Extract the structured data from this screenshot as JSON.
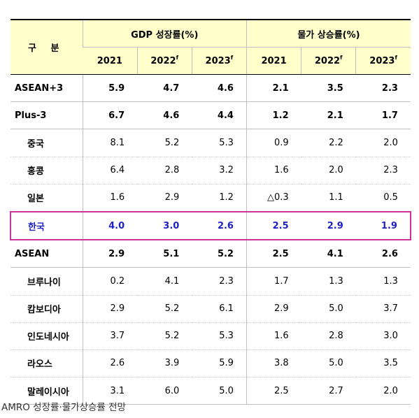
{
  "header": {
    "corner": "구 분",
    "gdp": "GDP 성장률(%)",
    "cpi": "물가 상승률(%)",
    "years": [
      {
        "year": "2021",
        "sup": ""
      },
      {
        "year": "2022",
        "sup": "f"
      },
      {
        "year": "2023",
        "sup": "f"
      },
      {
        "year": "2021",
        "sup": ""
      },
      {
        "year": "2022",
        "sup": "f"
      },
      {
        "year": "2023",
        "sup": "f"
      }
    ]
  },
  "rows": [
    {
      "name": "ASEAN+3",
      "values": [
        "5.9",
        "4.7",
        "4.6",
        "2.1",
        "3.5",
        "2.3"
      ]
    },
    {
      "name": "Plus-3",
      "values": [
        "6.7",
        "4.6",
        "4.4",
        "1.2",
        "2.1",
        "1.7"
      ]
    },
    {
      "name": "중국",
      "values": [
        "8.1",
        "5.2",
        "5.3",
        "0.9",
        "2.2",
        "2.0"
      ]
    },
    {
      "name": "홍콩",
      "values": [
        "6.4",
        "2.8",
        "3.2",
        "1.6",
        "2.0",
        "2.3"
      ]
    },
    {
      "name": "일본",
      "values": [
        "1.6",
        "2.9",
        "1.2",
        "△0.3",
        "1.1",
        "0.5"
      ]
    },
    {
      "name": "한국",
      "values": [
        "4.0",
        "3.0",
        "2.6",
        "2.5",
        "2.9",
        "1.9"
      ]
    },
    {
      "name": "ASEAN",
      "values": [
        "2.9",
        "5.1",
        "5.2",
        "2.5",
        "4.1",
        "2.6"
      ]
    },
    {
      "name": "브루나이",
      "values": [
        "0.2",
        "4.1",
        "2.3",
        "1.7",
        "1.3",
        "1.3"
      ]
    },
    {
      "name": "캄보디아",
      "values": [
        "2.9",
        "5.2",
        "6.1",
        "2.9",
        "5.0",
        "3.7"
      ]
    },
    {
      "name": "인도네시아",
      "values": [
        "3.7",
        "5.2",
        "5.3",
        "1.6",
        "2.8",
        "3.0"
      ]
    },
    {
      "name": "라오스",
      "values": [
        "2.6",
        "3.9",
        "5.9",
        "3.8",
        "5.0",
        "3.5"
      ]
    },
    {
      "name": "말레이시아",
      "values": [
        "3.1",
        "6.0",
        "5.0",
        "2.5",
        "2.7",
        "2.0"
      ]
    }
  ],
  "caption": "AMRO 성장률·물가상승률 전망"
}
